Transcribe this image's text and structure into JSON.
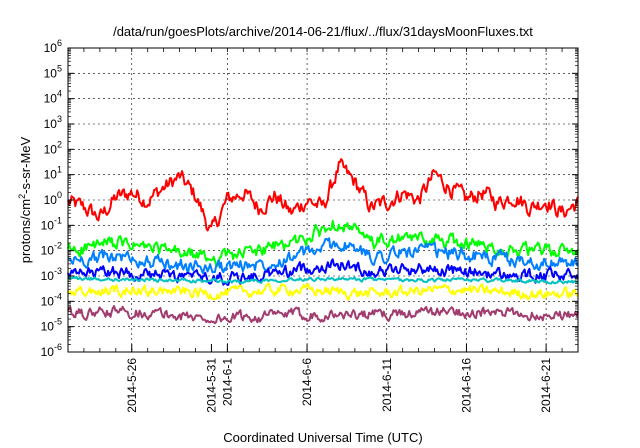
{
  "chart_data": {
    "type": "line",
    "title": "/data/run/goesPlots/archive/2014-06-21/flux/../flux/31daysMoonFluxes.txt",
    "xlabel": "Coordinated Universal Time (UTC)",
    "ylabel": "protons/cm²-s-sr-MeV",
    "ylabel_parts": {
      "prefix": "protons/cm",
      "sup": "2",
      "suffix": "-s-sr-MeV"
    },
    "y_scale": "log",
    "ylim": [
      1e-06,
      1000000.0
    ],
    "y_ticks": [
      {
        "value": 1e-06,
        "base": "10",
        "exp": "-6"
      },
      {
        "value": 1e-05,
        "base": "10",
        "exp": "-5"
      },
      {
        "value": 0.0001,
        "base": "10",
        "exp": "-4"
      },
      {
        "value": 0.001,
        "base": "10",
        "exp": "-3"
      },
      {
        "value": 0.01,
        "base": "10",
        "exp": "-2"
      },
      {
        "value": 0.1,
        "base": "10",
        "exp": "-1"
      },
      {
        "value": 1.0,
        "base": "10",
        "exp": "0"
      },
      {
        "value": 10.0,
        "base": "10",
        "exp": "1"
      },
      {
        "value": 100.0,
        "base": "10",
        "exp": "2"
      },
      {
        "value": 1000.0,
        "base": "10",
        "exp": "3"
      },
      {
        "value": 10000.0,
        "base": "10",
        "exp": "4"
      },
      {
        "value": 100000.0,
        "base": "10",
        "exp": "5"
      },
      {
        "value": 1000000.0,
        "base": "10",
        "exp": "6"
      }
    ],
    "xlim": [
      "2014-05-22",
      "2014-06-23"
    ],
    "x_ticks": [
      "2014-5-26",
      "2014-5-31",
      "2014-6-1",
      "2014-6-6",
      "2014-6-11",
      "2014-6-16",
      "2014-6-21"
    ],
    "x_tick_dates": [
      "2014-05-26",
      "2014-05-31",
      "2014-06-01",
      "2014-06-06",
      "2014-06-11",
      "2014-06-16",
      "2014-06-21"
    ],
    "grid": true,
    "series": [
      {
        "color": "#ff0000",
        "values": [
          [
            "2014-05-22",
            0.8
          ],
          [
            "2014-05-23",
            0.5
          ],
          [
            "2014-05-24",
            0.2
          ],
          [
            "2014-05-25",
            1.2
          ],
          [
            "2014-05-26",
            2.0
          ],
          [
            "2014-05-27",
            1.0
          ],
          [
            "2014-05-28",
            3.0
          ],
          [
            "2014-05-29",
            8.0
          ],
          [
            "2014-05-30",
            1.5
          ],
          [
            "2014-05-31",
            0.05
          ],
          [
            "2014-06-01",
            1.0
          ],
          [
            "2014-06-02",
            2.0
          ],
          [
            "2014-06-03",
            0.5
          ],
          [
            "2014-06-04",
            1.5
          ],
          [
            "2014-06-05",
            0.3
          ],
          [
            "2014-06-06",
            1.0
          ],
          [
            "2014-06-07",
            0.5
          ],
          [
            "2014-06-08",
            20.0
          ],
          [
            "2014-06-09",
            5.0
          ],
          [
            "2014-06-10",
            0.5
          ],
          [
            "2014-06-11",
            0.8
          ],
          [
            "2014-06-12",
            2.0
          ],
          [
            "2014-06-13",
            1.0
          ],
          [
            "2014-06-14",
            10.0
          ],
          [
            "2014-06-15",
            3.0
          ],
          [
            "2014-06-16",
            1.0
          ],
          [
            "2014-06-17",
            2.0
          ],
          [
            "2014-06-18",
            0.8
          ],
          [
            "2014-06-19",
            1.5
          ],
          [
            "2014-06-20",
            0.5
          ],
          [
            "2014-06-21",
            1.0
          ],
          [
            "2014-06-22",
            0.3
          ],
          [
            "2014-06-23",
            0.8
          ]
        ]
      },
      {
        "color": "#00ff00",
        "values": [
          [
            "2014-05-22",
            0.01
          ],
          [
            "2014-05-25",
            0.02
          ],
          [
            "2014-05-28",
            0.01
          ],
          [
            "2014-05-31",
            0.005
          ],
          [
            "2014-06-03",
            0.01
          ],
          [
            "2014-06-06",
            0.03
          ],
          [
            "2014-06-08",
            0.15
          ],
          [
            "2014-06-10",
            0.02
          ],
          [
            "2014-06-13",
            0.03
          ],
          [
            "2014-06-16",
            0.02
          ],
          [
            "2014-06-19",
            0.01
          ],
          [
            "2014-06-23",
            0.01
          ]
        ]
      },
      {
        "color": "#0080ff",
        "values": [
          [
            "2014-05-22",
            0.004
          ],
          [
            "2014-05-25",
            0.006
          ],
          [
            "2014-05-28",
            0.003
          ],
          [
            "2014-05-31",
            0.002
          ],
          [
            "2014-06-03",
            0.003
          ],
          [
            "2014-06-06",
            0.008
          ],
          [
            "2014-06-08",
            0.02
          ],
          [
            "2014-06-10",
            0.006
          ],
          [
            "2014-06-13",
            0.01
          ],
          [
            "2014-06-16",
            0.007
          ],
          [
            "2014-06-19",
            0.004
          ],
          [
            "2014-06-23",
            0.003
          ]
        ]
      },
      {
        "color": "#0000ff",
        "values": [
          [
            "2014-05-22",
            0.001
          ],
          [
            "2014-05-25",
            0.0015
          ],
          [
            "2014-05-28",
            0.001
          ],
          [
            "2014-05-31",
            0.0008
          ],
          [
            "2014-06-03",
            0.001
          ],
          [
            "2014-06-06",
            0.002
          ],
          [
            "2014-06-08",
            0.003
          ],
          [
            "2014-06-10",
            0.0015
          ],
          [
            "2014-06-13",
            0.002
          ],
          [
            "2014-06-16",
            0.0015
          ],
          [
            "2014-06-19",
            0.001
          ],
          [
            "2014-06-23",
            0.001
          ]
        ]
      },
      {
        "color": "#00c0c0",
        "values": [
          [
            "2014-05-22",
            0.0008
          ],
          [
            "2014-05-27",
            0.0007
          ],
          [
            "2014-06-01",
            0.0006
          ],
          [
            "2014-06-06",
            0.0008
          ],
          [
            "2014-06-11",
            0.0007
          ],
          [
            "2014-06-16",
            0.0007
          ],
          [
            "2014-06-23",
            0.0006
          ]
        ]
      },
      {
        "color": "#ffff00",
        "values": [
          [
            "2014-05-22",
            0.0002
          ],
          [
            "2014-05-26",
            0.0003
          ],
          [
            "2014-05-31",
            0.0002
          ],
          [
            "2014-06-05",
            0.0003
          ],
          [
            "2014-06-10",
            0.0002
          ],
          [
            "2014-06-15",
            0.0003
          ],
          [
            "2014-06-20",
            0.0002
          ],
          [
            "2014-06-23",
            0.0002
          ]
        ]
      },
      {
        "color": "#a03c6e",
        "values": [
          [
            "2014-05-22",
            3e-05
          ],
          [
            "2014-05-26",
            4e-05
          ],
          [
            "2014-05-31",
            2e-05
          ],
          [
            "2014-06-05",
            3e-05
          ],
          [
            "2014-06-10",
            3e-05
          ],
          [
            "2014-06-15",
            4e-05
          ],
          [
            "2014-06-20",
            3e-05
          ],
          [
            "2014-06-23",
            3e-05
          ]
        ]
      }
    ]
  }
}
